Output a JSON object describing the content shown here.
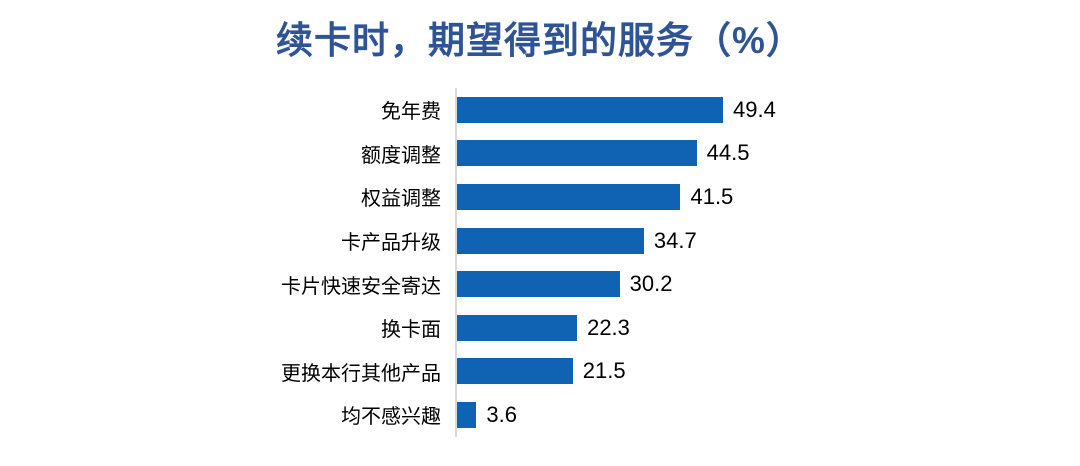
{
  "chart_data": {
    "type": "bar",
    "orientation": "horizontal",
    "title": "续卡时，期望得到的服务（%）",
    "categories": [
      "免年费",
      "额度调整",
      "权益调整",
      "卡产品升级",
      "卡片快速安全寄达",
      "换卡面",
      "更换本行其他产品",
      "均不感兴趣"
    ],
    "values": [
      49.4,
      44.5,
      41.5,
      34.7,
      30.2,
      22.3,
      21.5,
      3.6
    ],
    "value_labels": [
      "49.4",
      "44.5",
      "41.5",
      "34.7",
      "30.2",
      "22.3",
      "21.5",
      "3.6"
    ],
    "xlabel": "",
    "ylabel": "",
    "xlim": [
      0,
      55
    ],
    "grid": false,
    "legend": null,
    "bar_label_position": "outside-end",
    "colors": {
      "bar": "#1062B2",
      "title": "#2F5496",
      "axis_line": "#D9D9D9",
      "text": "#000000",
      "background": "#FFFFFF"
    }
  }
}
